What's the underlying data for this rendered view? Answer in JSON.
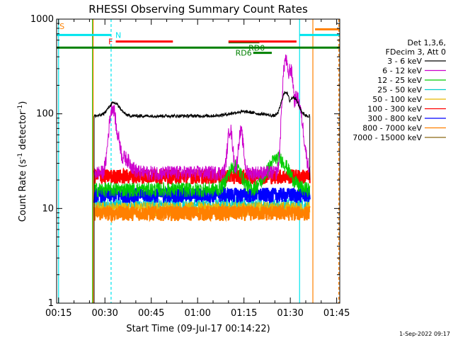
{
  "chart_data": {
    "type": "line",
    "title": "RHESSI Observing Summary Count Rates",
    "xlabel": "Start Time (09-Jul-17 00:14:22)",
    "ylabel_parts": {
      "prefix": "Count Rate (s",
      "sup": "-1",
      "suffix": " detector",
      "sup2": "-1",
      "end": ")"
    },
    "y_scale": "log",
    "ylim": [
      1,
      1000
    ],
    "y_ticks": [
      {
        "value": 1,
        "label": "1"
      },
      {
        "value": 10,
        "label": "10"
      },
      {
        "value": 100,
        "label": "100"
      },
      {
        "value": 1000,
        "label": "1000"
      }
    ],
    "xlim_minutes": [
      14.37,
      106.0
    ],
    "x_ticks": [
      {
        "minute": 15,
        "label": "00:15"
      },
      {
        "minute": 30,
        "label": "00:30"
      },
      {
        "minute": 45,
        "label": "00:45"
      },
      {
        "minute": 60,
        "label": "01:00"
      },
      {
        "minute": 75,
        "label": "01:15"
      },
      {
        "minute": 90,
        "label": "01:30"
      },
      {
        "minute": 105,
        "label": "01:45"
      }
    ],
    "legend_header": [
      "Det 1,3,6,",
      "FDecim 3, Att 0"
    ],
    "series": [
      {
        "name": "3 - 6 keV",
        "color": "#000000",
        "base": 95,
        "bumps": [
          [
            33,
            1.8,
            130
          ],
          [
            75,
            4,
            105
          ],
          [
            81,
            1.5,
            100
          ],
          [
            88.5,
            1.2,
            170
          ],
          [
            91,
            1.5,
            150
          ]
        ]
      },
      {
        "name": "6 - 12 keV",
        "color": "#cc00cc",
        "base": 24,
        "bumps": [
          [
            32.5,
            1.0,
            120
          ],
          [
            34,
            1.0,
            60
          ],
          [
            36,
            2,
            35
          ],
          [
            70.5,
            0.7,
            70
          ],
          [
            74,
            0.7,
            65
          ],
          [
            88.5,
            0.8,
            380
          ],
          [
            90,
            1.0,
            300
          ],
          [
            92,
            1.5,
            150
          ]
        ]
      },
      {
        "name": "12 - 25 keV",
        "color": "#00cc00",
        "base": 16,
        "bumps": [
          [
            72,
            2,
            28
          ],
          [
            86,
            3,
            34
          ]
        ]
      },
      {
        "name": "25 - 50 keV",
        "color": "#00cccc",
        "base": 11,
        "bumps": []
      },
      {
        "name": "50 - 100 keV",
        "color": "#e6b800",
        "base": 10,
        "bumps": []
      },
      {
        "name": "100 - 300 keV",
        "color": "#ff0000",
        "base": 22,
        "bumps": []
      },
      {
        "name": "300 - 800 keV",
        "color": "#0000ff",
        "base": 14,
        "bumps": []
      },
      {
        "name": "800 - 7000 keV",
        "color": "#ff8000",
        "base": 9,
        "bumps": []
      },
      {
        "name": "7000 - 15000 keV",
        "color": "#8b6914",
        "base": 0,
        "bumps": []
      }
    ],
    "data_span_minutes": [
      26,
      96.3
    ],
    "flags": [
      {
        "label": "S",
        "color": "#ff8000",
        "y": 980,
        "from": 14.4,
        "to": 14.4
      },
      {
        "label": "N",
        "color": "#00e5ee",
        "y": 680,
        "from": 14.4,
        "to": 32,
        "thick": true
      },
      {
        "label": "F",
        "color": "#ff0000",
        "y": 580,
        "from": 33.5,
        "to": 52,
        "thick": true
      },
      {
        "label": "RD0",
        "color": "#008000",
        "y": 570,
        "from": 70,
        "to": 80,
        "thick": true
      },
      {
        "label": "RD6",
        "color": "#008000",
        "y": 440,
        "from": 78,
        "to": 84,
        "thick": true
      },
      {
        "label": "",
        "color": "#ff0000",
        "y": 580,
        "from": 70,
        "to": 92,
        "thick": true
      },
      {
        "label": "",
        "color": "#008000",
        "y": 500,
        "from": 14.4,
        "to": 105.9,
        "thick": true
      },
      {
        "label": "",
        "color": "#00e5ee",
        "y": 680,
        "from": 93,
        "to": 105.9,
        "thick": true
      },
      {
        "label": "",
        "color": "#ff8000",
        "y": 780,
        "from": 98,
        "to": 105.9,
        "thick": true
      }
    ],
    "vlines": [
      {
        "minute": 15,
        "color": "#00e5ee",
        "style": "solid"
      },
      {
        "minute": 32,
        "color": "#00e5ee",
        "style": "dashed"
      },
      {
        "minute": 93,
        "color": "#00e5ee",
        "style": "solid"
      },
      {
        "minute": 97.3,
        "color": "#ff8000",
        "style": "solid"
      },
      {
        "minute": 105.7,
        "color": "#ff8000",
        "style": "dashed"
      },
      {
        "minute": 26,
        "color": "#00cc00",
        "style": "solid"
      },
      {
        "minute": 26.2,
        "color": "#ff8000",
        "style": "solid"
      }
    ],
    "footer": "1-Sep-2022 09:17"
  }
}
